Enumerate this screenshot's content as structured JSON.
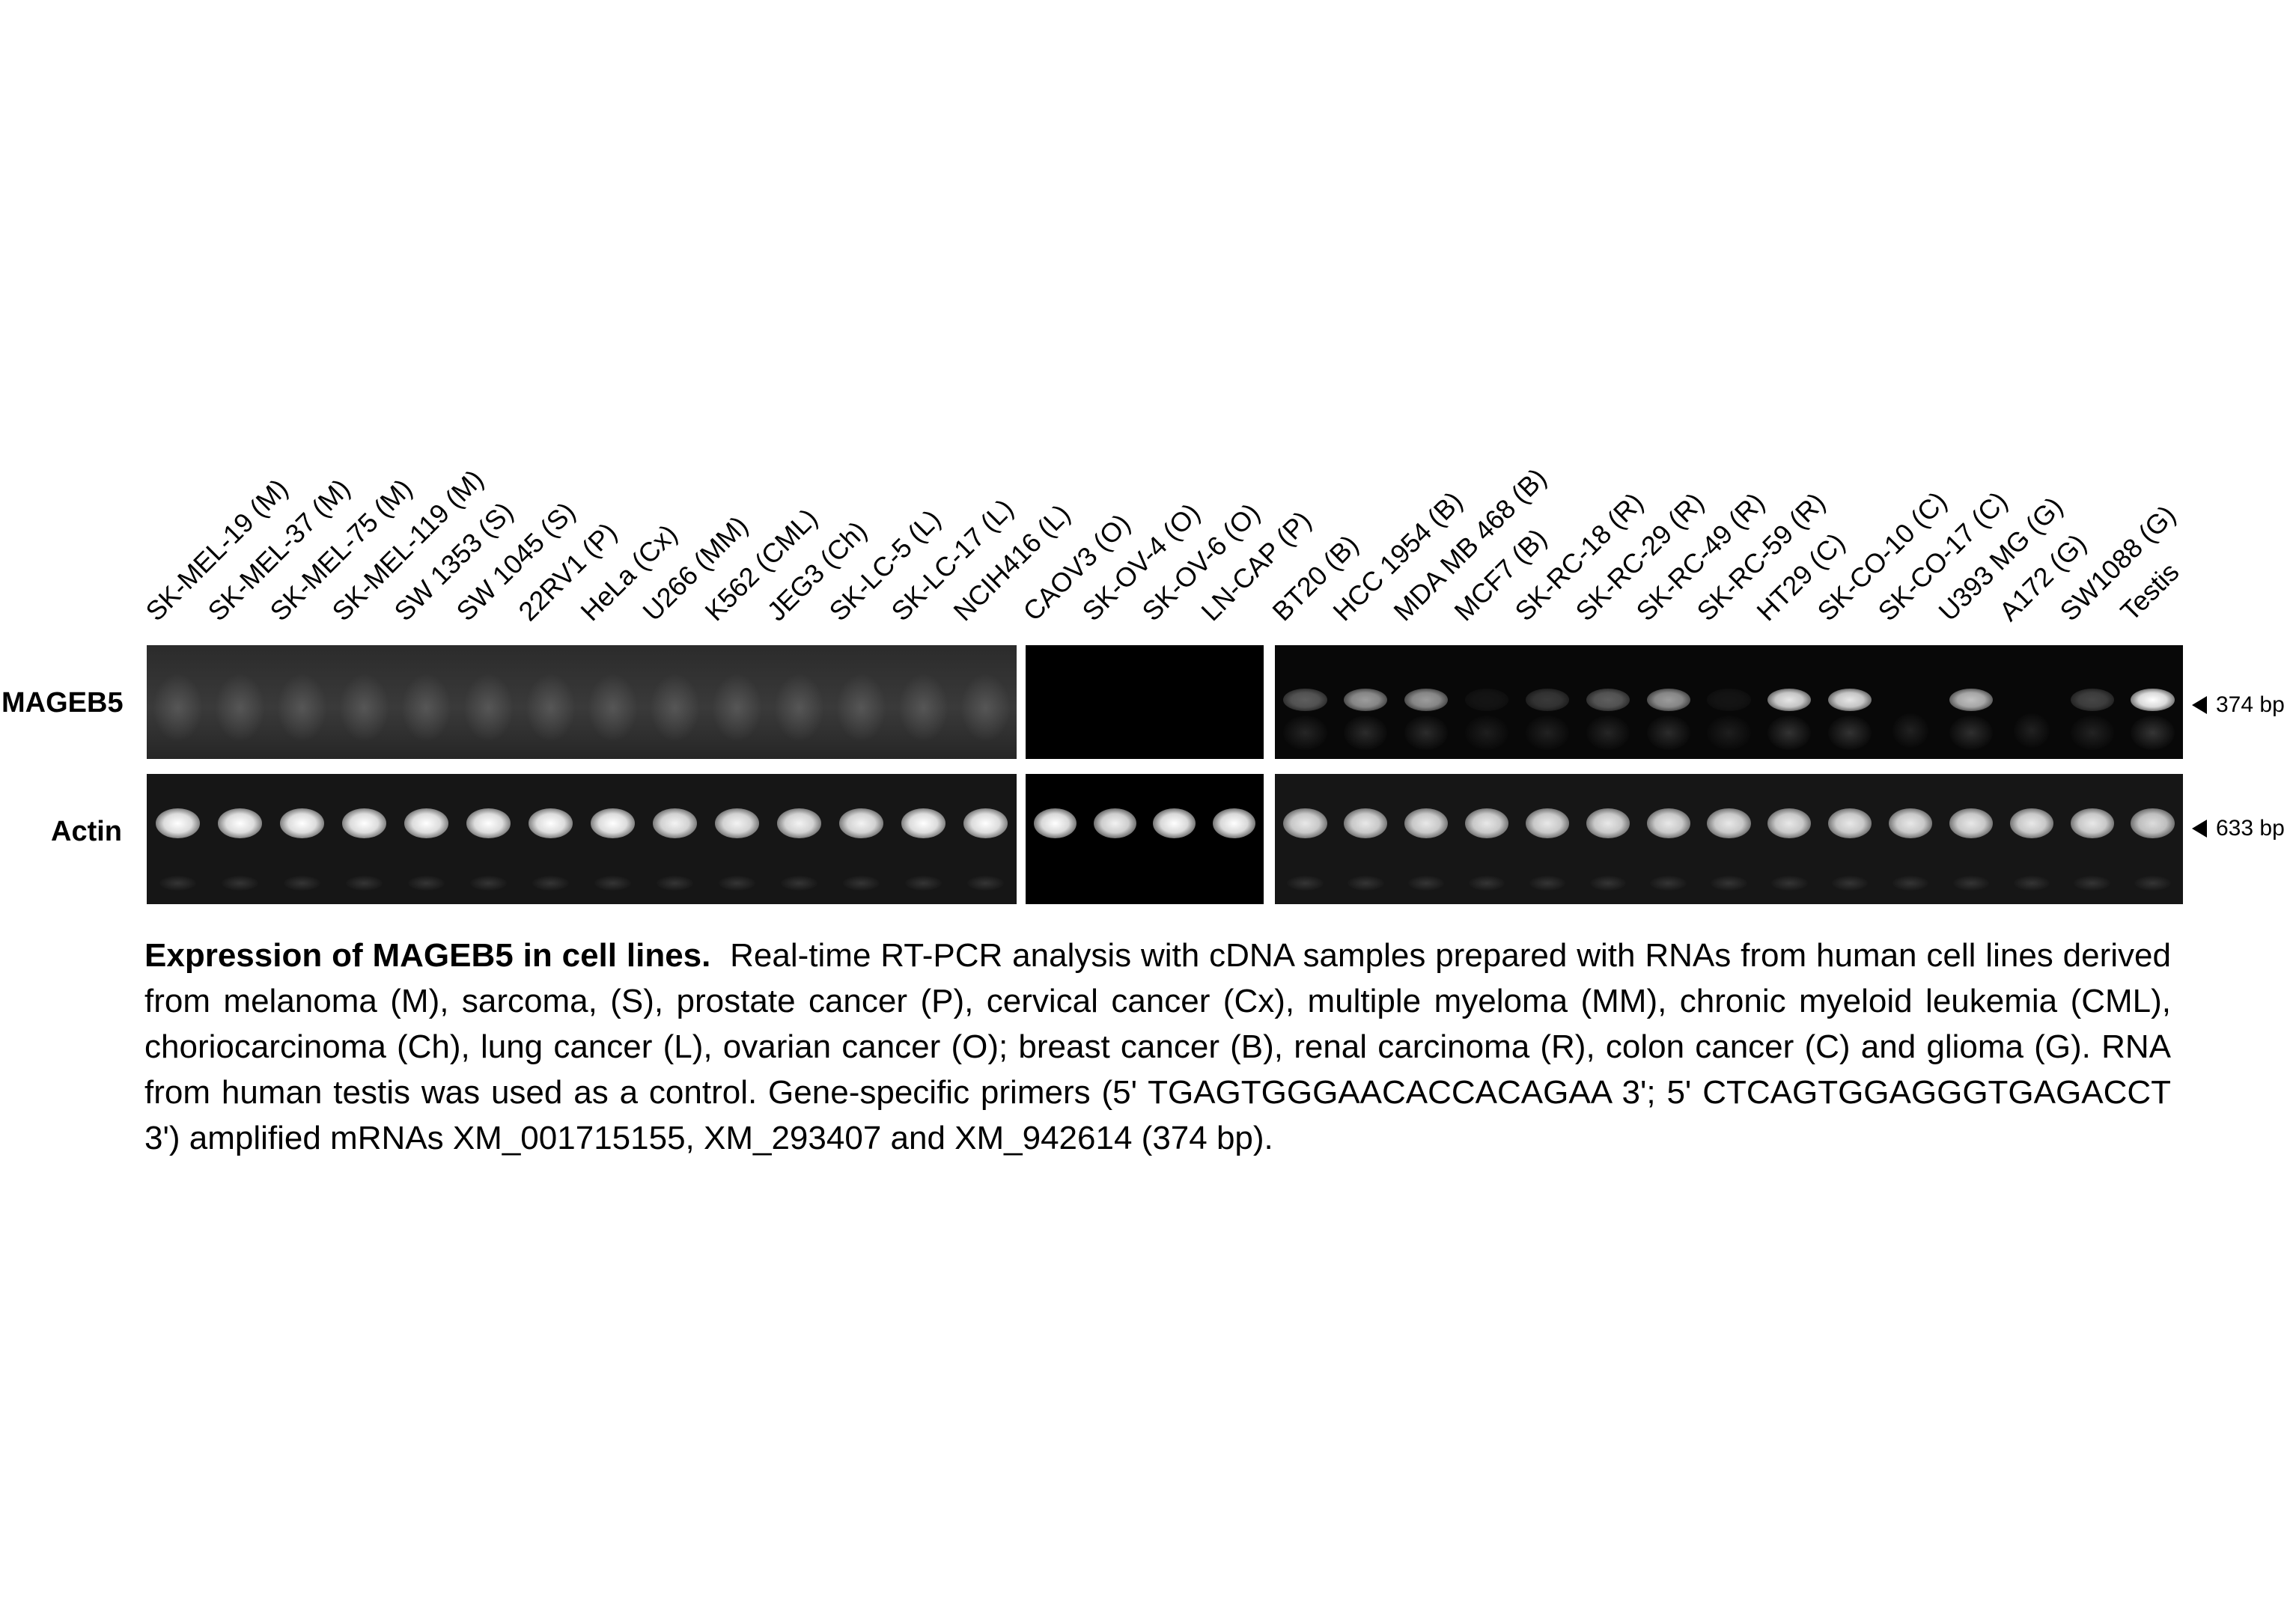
{
  "lanes": [
    {
      "label": "SK-MEL-19 (M)",
      "mageb5": 0.0,
      "actin": 1.0
    },
    {
      "label": "SK-MEL-37 (M)",
      "mageb5": 0.0,
      "actin": 1.0
    },
    {
      "label": "SK-MEL-75 (M)",
      "mageb5": 0.0,
      "actin": 1.0
    },
    {
      "label": "SK-MEL-119 (M)",
      "mageb5": 0.0,
      "actin": 1.0
    },
    {
      "label": "SW 1353 (S)",
      "mageb5": 0.0,
      "actin": 1.0
    },
    {
      "label": "SW 1045 (S)",
      "mageb5": 0.0,
      "actin": 1.0
    },
    {
      "label": "22RV1 (P)",
      "mageb5": 0.0,
      "actin": 1.0
    },
    {
      "label": "HeLa (Cx)",
      "mageb5": 0.0,
      "actin": 1.0
    },
    {
      "label": "U266 (MM)",
      "mageb5": 0.0,
      "actin": 0.95
    },
    {
      "label": "K562 (CML)",
      "mageb5": 0.0,
      "actin": 0.95
    },
    {
      "label": "JEG3 (Ch)",
      "mageb5": 0.0,
      "actin": 0.95
    },
    {
      "label": "SK-LC-5 (L)",
      "mageb5": 0.0,
      "actin": 0.95
    },
    {
      "label": "SK-LC-17 (L)",
      "mageb5": 0.0,
      "actin": 1.0
    },
    {
      "label": "NCIH416 (L)",
      "mageb5": 0.0,
      "actin": 1.0
    },
    {
      "label": "CAOV3 (O)",
      "mageb5": 0.0,
      "actin": 1.0
    },
    {
      "label": "SK-OV-4 (O)",
      "mageb5": 0.0,
      "actin": 0.95
    },
    {
      "label": "SK-OV-6 (O)",
      "mageb5": 0.0,
      "actin": 1.0
    },
    {
      "label": "LN-CAP (P)",
      "mageb5": 0.0,
      "actin": 1.0
    },
    {
      "label": "BT20 (B)",
      "mageb5": 0.35,
      "actin": 0.9
    },
    {
      "label": "HCC 1954 (B)",
      "mageb5": 0.6,
      "actin": 0.9
    },
    {
      "label": "MDA MB 468 (B)",
      "mageb5": 0.6,
      "actin": 0.9
    },
    {
      "label": "MCF7 (B)",
      "mageb5": 0.05,
      "actin": 0.9
    },
    {
      "label": "SK-RC-18 (R)",
      "mageb5": 0.2,
      "actin": 0.9
    },
    {
      "label": "SK-RC-29 (R)",
      "mageb5": 0.35,
      "actin": 0.9
    },
    {
      "label": "SK-RC-49 (R)",
      "mageb5": 0.6,
      "actin": 0.9
    },
    {
      "label": "SK-RC-59 (R)",
      "mageb5": 0.05,
      "actin": 0.9
    },
    {
      "label": "HT29 (C)",
      "mageb5": 0.9,
      "actin": 0.9
    },
    {
      "label": "SK-CO-10 (C)",
      "mageb5": 0.9,
      "actin": 0.9
    },
    {
      "label": "SK-CO-17 (C)",
      "mageb5": 0.0,
      "actin": 0.9
    },
    {
      "label": "U393 MG (G)",
      "mageb5": 0.75,
      "actin": 0.9
    },
    {
      "label": "A172 (G)",
      "mageb5": 0.0,
      "actin": 0.9
    },
    {
      "label": "SW1088 (G)",
      "mageb5": 0.25,
      "actin": 0.9
    },
    {
      "label": "Testis",
      "mageb5": 1.0,
      "actin": 0.85
    }
  ],
  "rows": {
    "mageb5": {
      "label": "MAGEB5",
      "size": "374 bp"
    },
    "actin": {
      "label": "Actin",
      "size": "633 bp"
    }
  },
  "caption": {
    "title": "Expression of MAGEB5 in cell lines.",
    "body": "Real-time RT-PCR  analysis with cDNA samples prepared with RNAs from human cell lines derived from melanoma (M), sarcoma, (S), prostate cancer (P),  cervical cancer (Cx), multiple myeloma (MM), chronic myeloid leukemia (CML), choriocarcinoma (Ch), lung cancer (L), ovarian cancer (O); breast cancer (B), renal carcinoma (R), colon cancer (C) and glioma (G). RNA from human testis was used as a control. Gene-specific primers (5' TGAGTGGGAACACCACAGAA 3'; 5' CTCAGTGGAGGGTGAGACCT 3') amplified mRNAs XM_001715155, XM_293407 and XM_942614 (374 bp)."
  },
  "colors": {
    "gel_background": "#0a0a0a",
    "band": "#ffffff",
    "smear": "#5a5a5a"
  }
}
